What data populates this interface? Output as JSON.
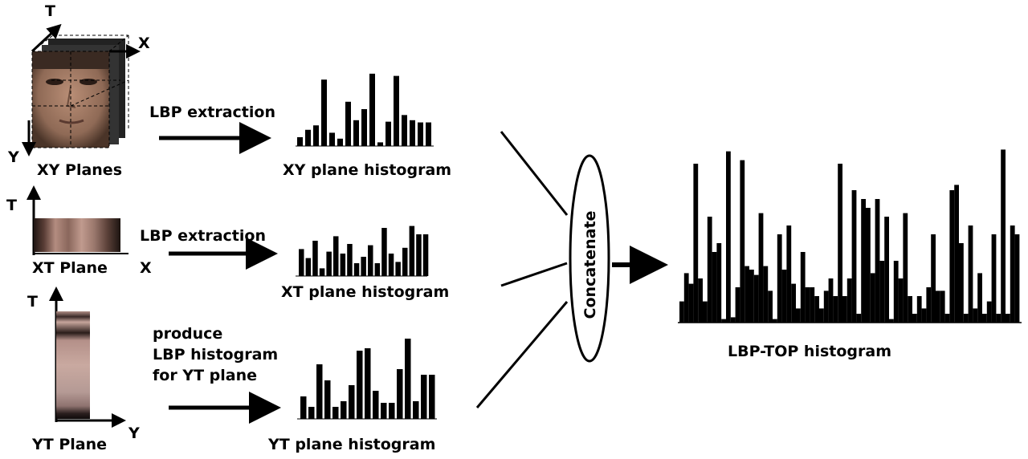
{
  "colors": {
    "ink": "#000000",
    "background": "#ffffff",
    "face_skin": "#a07c66",
    "strip_dark": "#2a1d1a",
    "strip_light": "#b9958a"
  },
  "xy_block": {
    "axis_t": "T",
    "axis_x": "X",
    "axis_y": "Y",
    "caption": "XY Planes"
  },
  "xt_block": {
    "axis_t": "T",
    "axis_x": "X",
    "caption": "XT Plane"
  },
  "yt_block": {
    "axis_t": "T",
    "axis_y": "Y",
    "caption": "YT Plane"
  },
  "steps": {
    "xy_label": "LBP extraction",
    "xt_label": "LBP extraction",
    "yt_label_lines": [
      "produce",
      "LBP histogram",
      "for YT plane"
    ]
  },
  "histograms": {
    "xy": {
      "caption": "XY plane histogram",
      "values": [
        0.12,
        0.22,
        0.28,
        0.9,
        0.18,
        0.1,
        0.6,
        0.35,
        0.5,
        0.98,
        0.05,
        0.33,
        0.95,
        0.42,
        0.35,
        0.32,
        0.32
      ]
    },
    "xt": {
      "caption": "XT plane histogram",
      "values": [
        0.42,
        0.28,
        0.55,
        0.12,
        0.38,
        0.62,
        0.35,
        0.5,
        0.2,
        0.3,
        0.48,
        0.2,
        0.75,
        0.35,
        0.22,
        0.44,
        0.78,
        0.65,
        0.65
      ]
    },
    "yt": {
      "caption": "YT plane histogram",
      "values": [
        0.28,
        0.15,
        0.68,
        0.48,
        0.15,
        0.22,
        0.42,
        0.85,
        0.88,
        0.35,
        0.2,
        0.2,
        0.62,
        1.0,
        0.22,
        0.55,
        0.55
      ]
    },
    "lbptop": {
      "caption": "LBP-TOP histogram",
      "values": [
        0.12,
        0.28,
        0.22,
        0.9,
        0.25,
        0.12,
        0.6,
        0.4,
        0.45,
        0.02,
        0.97,
        0.03,
        0.2,
        0.92,
        0.32,
        0.3,
        0.27,
        0.62,
        0.32,
        0.18,
        0.02,
        0.5,
        0.3,
        0.55,
        0.22,
        0.08,
        0.4,
        0.2,
        0.2,
        0.15,
        0.08,
        0.18,
        0.25,
        0.15,
        0.9,
        0.15,
        0.25,
        0.75,
        0.05,
        0.7,
        0.65,
        0.28,
        0.7,
        0.35,
        0.6,
        0.02,
        0.35,
        0.25,
        0.62,
        0.15,
        0.05,
        0.15,
        0.08,
        0.2,
        0.5,
        0.18,
        0.18,
        0.05,
        0.75,
        0.78,
        0.45,
        0.05,
        0.55,
        0.08,
        0.28,
        0.05,
        0.12,
        0.5,
        0.05,
        0.98,
        0.05,
        0.55,
        0.5
      ]
    }
  },
  "concat_label": "Concatenate"
}
